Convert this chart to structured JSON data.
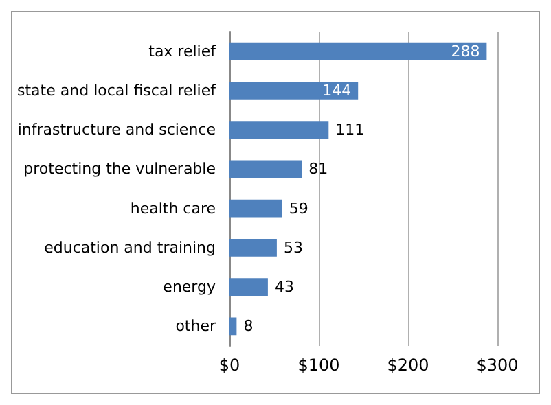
{
  "chart_data": {
    "type": "bar",
    "orientation": "horizontal",
    "categories": [
      "tax relief",
      "state and local fiscal relief",
      "infrastructure and science",
      "protecting the vulnerable",
      "health care",
      "education and training",
      "energy",
      "other"
    ],
    "values": [
      288,
      144,
      111,
      81,
      59,
      53,
      43,
      8
    ],
    "color": "#4f81bd",
    "xlim": [
      0,
      300
    ],
    "xticks": [
      {
        "value": 0,
        "label": "$0"
      },
      {
        "value": 100,
        "label": "$100"
      },
      {
        "value": 200,
        "label": "$200"
      },
      {
        "value": 300,
        "label": "$300"
      }
    ],
    "grid": "x",
    "data_labels": true
  }
}
